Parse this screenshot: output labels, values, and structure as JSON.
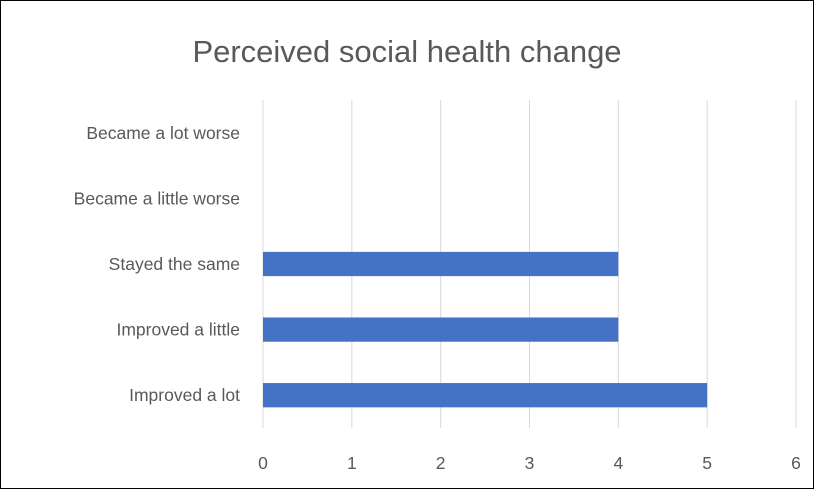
{
  "chart_data": {
    "type": "bar",
    "orientation": "horizontal",
    "title": "Perceived social health change",
    "categories": [
      "Became a lot worse",
      "Became a little worse",
      "Stayed the same",
      "Improved a little",
      "Improved a lot"
    ],
    "values": [
      0,
      0,
      4,
      4,
      5
    ],
    "xlabel": "",
    "ylabel": "",
    "xlim": [
      0,
      6
    ],
    "x_ticks": [
      "0",
      "1",
      "2",
      "3",
      "4",
      "5",
      "6"
    ],
    "grid": "vertical",
    "legend": "none",
    "bar_color": "#4472C4",
    "grid_color": "#D9D9D9"
  }
}
